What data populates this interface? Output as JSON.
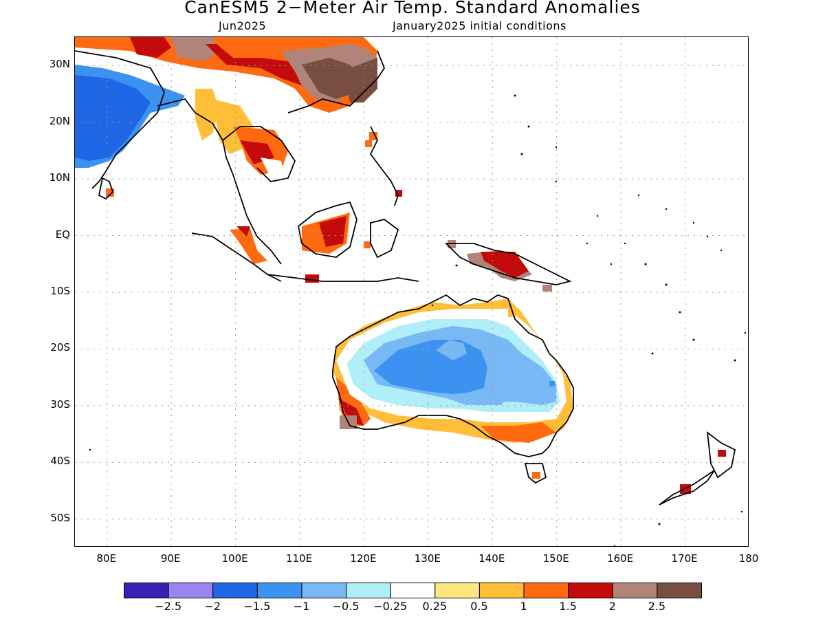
{
  "title": "CanESM5 2−Meter Air Temp. Standard Anomalies",
  "subtitle_left": "Jun2025",
  "subtitle_right": "January2025 initial conditions",
  "map": {
    "lon_range": [
      75,
      180
    ],
    "lat_range": [
      -55,
      35
    ],
    "lat_labels": [
      "30N",
      "20N",
      "10N",
      "EQ",
      "10S",
      "20S",
      "30S",
      "40S",
      "50S"
    ],
    "lon_labels": [
      "80E",
      "90E",
      "100E",
      "110E",
      "120E",
      "130E",
      "140E",
      "150E",
      "160E",
      "170E",
      "180"
    ],
    "grid": "dotted"
  },
  "colorbar": {
    "colors": [
      "#3a1fb5",
      "#9c84f0",
      "#1f66e5",
      "#3c92f0",
      "#78b8f5",
      "#b0eef8",
      "#ffffff",
      "#ffe780",
      "#ffbe37",
      "#ff6a10",
      "#c40b0b",
      "#b08478",
      "#784e41"
    ],
    "labels": [
      "−2.5",
      "−2",
      "−1.5",
      "−1",
      "−0.5",
      "−0.25",
      "0.25",
      "0.5",
      "1",
      "1.5",
      "2",
      "2.5"
    ]
  },
  "colors": {
    "grid": "#9a9a9a",
    "coast": "#000000"
  }
}
